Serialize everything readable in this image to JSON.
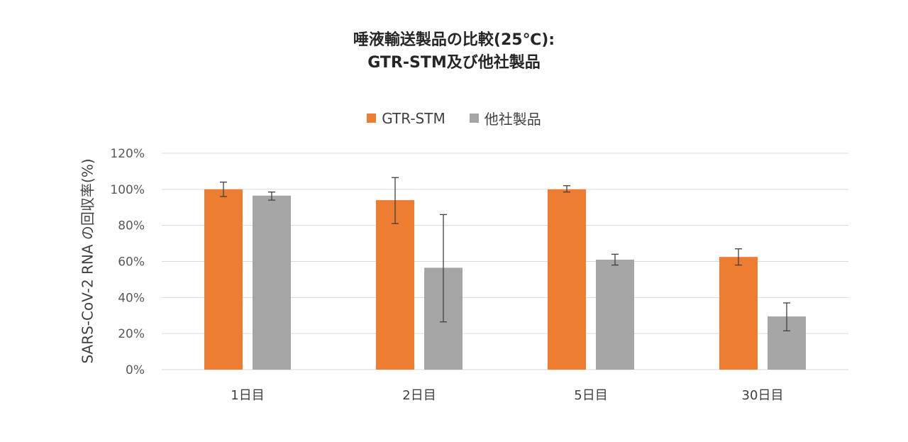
{
  "chart_data": {
    "type": "bar",
    "title_lines": [
      "唾液輸送製品の比較(25℃):",
      "GTR-STM及び他社製品"
    ],
    "xlabel": "",
    "ylabel": "SARS-CoV-2 RNA の回収率(%)",
    "categories": [
      "1日目",
      "2日目",
      "5日目",
      "30日目"
    ],
    "ylim": [
      0,
      120
    ],
    "yticks": [
      0,
      20,
      40,
      60,
      80,
      100,
      120
    ],
    "ytick_labels": [
      "0%",
      "20%",
      "40%",
      "60%",
      "80%",
      "100%",
      "120%"
    ],
    "grid": true,
    "legend_position": "top-center",
    "series": [
      {
        "name": "GTR-STM",
        "color": "#ED7D31",
        "values": [
          100,
          94,
          100,
          62.5
        ],
        "error_low": [
          96,
          81,
          98.5,
          58
        ],
        "error_high": [
          104,
          106.5,
          102,
          67
        ]
      },
      {
        "name": "他社製品",
        "color": "#A5A5A5",
        "values": [
          96.5,
          56.5,
          61,
          29.5
        ],
        "error_low": [
          94,
          26.5,
          58,
          21.5
        ],
        "error_high": [
          98.5,
          86,
          64,
          37
        ]
      }
    ]
  }
}
